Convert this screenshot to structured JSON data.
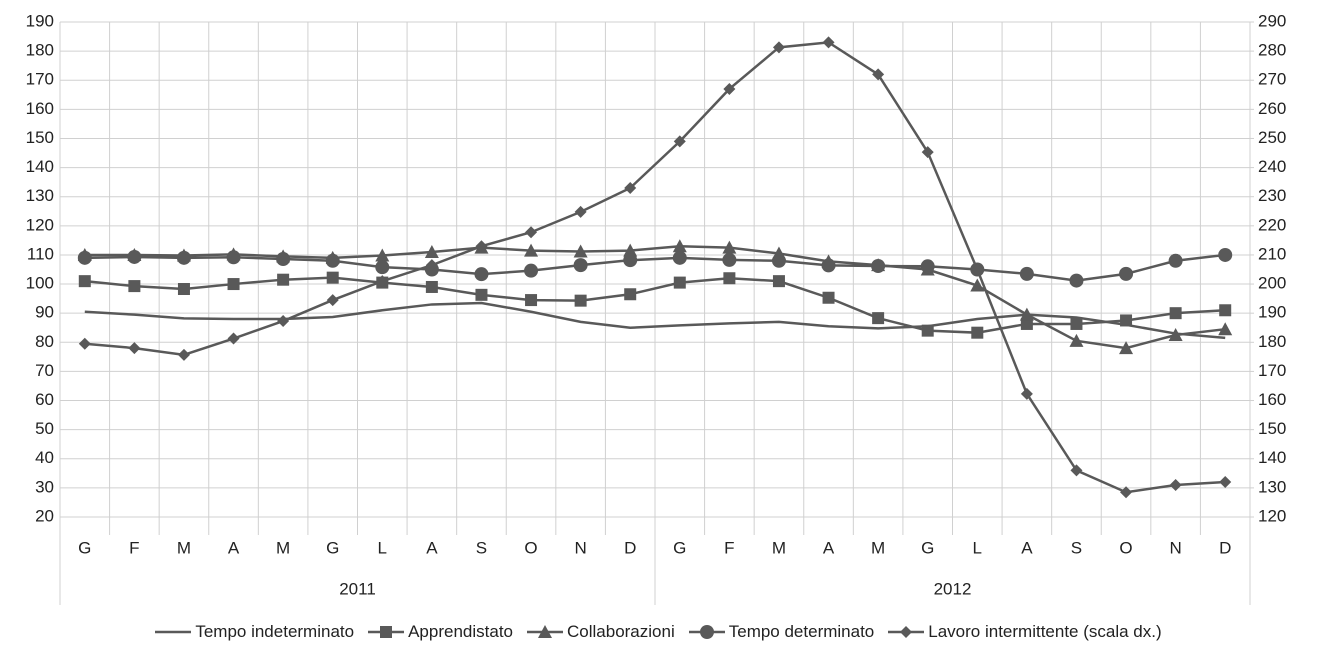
{
  "chart_data": {
    "type": "line",
    "categories": [
      "G",
      "F",
      "M",
      "A",
      "M",
      "G",
      "L",
      "A",
      "S",
      "O",
      "N",
      "D",
      "G",
      "F",
      "M",
      "A",
      "M",
      "G",
      "L",
      "A",
      "S",
      "O",
      "N",
      "D"
    ],
    "category_groups": [
      "2011",
      "2012"
    ],
    "ylim": [
      20,
      190
    ],
    "yticks": [
      20,
      30,
      40,
      50,
      60,
      70,
      80,
      90,
      100,
      110,
      120,
      130,
      140,
      150,
      160,
      170,
      180,
      190
    ],
    "y2lim": [
      120,
      290
    ],
    "y2ticks": [
      120,
      130,
      140,
      150,
      160,
      170,
      180,
      190,
      200,
      210,
      220,
      230,
      240,
      250,
      260,
      270,
      280,
      290
    ],
    "grid": true,
    "legend": "bottom",
    "series": [
      {
        "name": "Tempo indeterminato",
        "color": "#595959",
        "marker": "none",
        "values": [
          90.5,
          89.5,
          88.2,
          88,
          88,
          88.7,
          91,
          93,
          93.5,
          90.5,
          87,
          85,
          85.8,
          86.5,
          87,
          85.5,
          84.8,
          85.5,
          88,
          89.5,
          88.5,
          86,
          83,
          81.5
        ]
      },
      {
        "name": "Apprendistato",
        "color": "#595959",
        "marker": "square",
        "values": [
          101,
          99.3,
          98.3,
          100,
          101.5,
          102.2,
          100.5,
          99,
          96.3,
          94.5,
          94.3,
          96.5,
          100.5,
          102,
          101,
          95.3,
          88.3,
          84,
          83.3,
          86.3,
          86.3,
          87.5,
          90,
          91
        ]
      },
      {
        "name": "Collaborazioni",
        "color": "#595959",
        "marker": "triangle",
        "values": [
          110,
          110,
          109.8,
          110.2,
          109.5,
          109,
          109.8,
          111,
          112.5,
          111.5,
          111.2,
          111.5,
          113,
          112.5,
          110.5,
          107.8,
          106.5,
          105,
          99.5,
          89.5,
          80.5,
          78,
          82.5,
          84.5
        ]
      },
      {
        "name": "Tempo determinato",
        "color": "#595959",
        "marker": "circle",
        "values": [
          109,
          109.3,
          109,
          109.2,
          108.6,
          108,
          105.8,
          105,
          103.4,
          104.6,
          106.5,
          108.2,
          109,
          108.3,
          108,
          106.4,
          106.2,
          106.1,
          105,
          103.5,
          101.2,
          103.5,
          108,
          110
        ]
      },
      {
        "name": "Lavoro intermittente (scala dx.)",
        "color": "#595959",
        "marker": "diamond",
        "axis": "y2",
        "values": [
          179.5,
          178,
          175.7,
          181.3,
          187.3,
          194.5,
          201,
          206.5,
          213,
          217.8,
          224.8,
          233,
          249,
          267,
          281.3,
          283,
          272,
          245.3,
          205,
          162.3,
          136,
          128.5,
          131,
          132
        ]
      }
    ]
  }
}
